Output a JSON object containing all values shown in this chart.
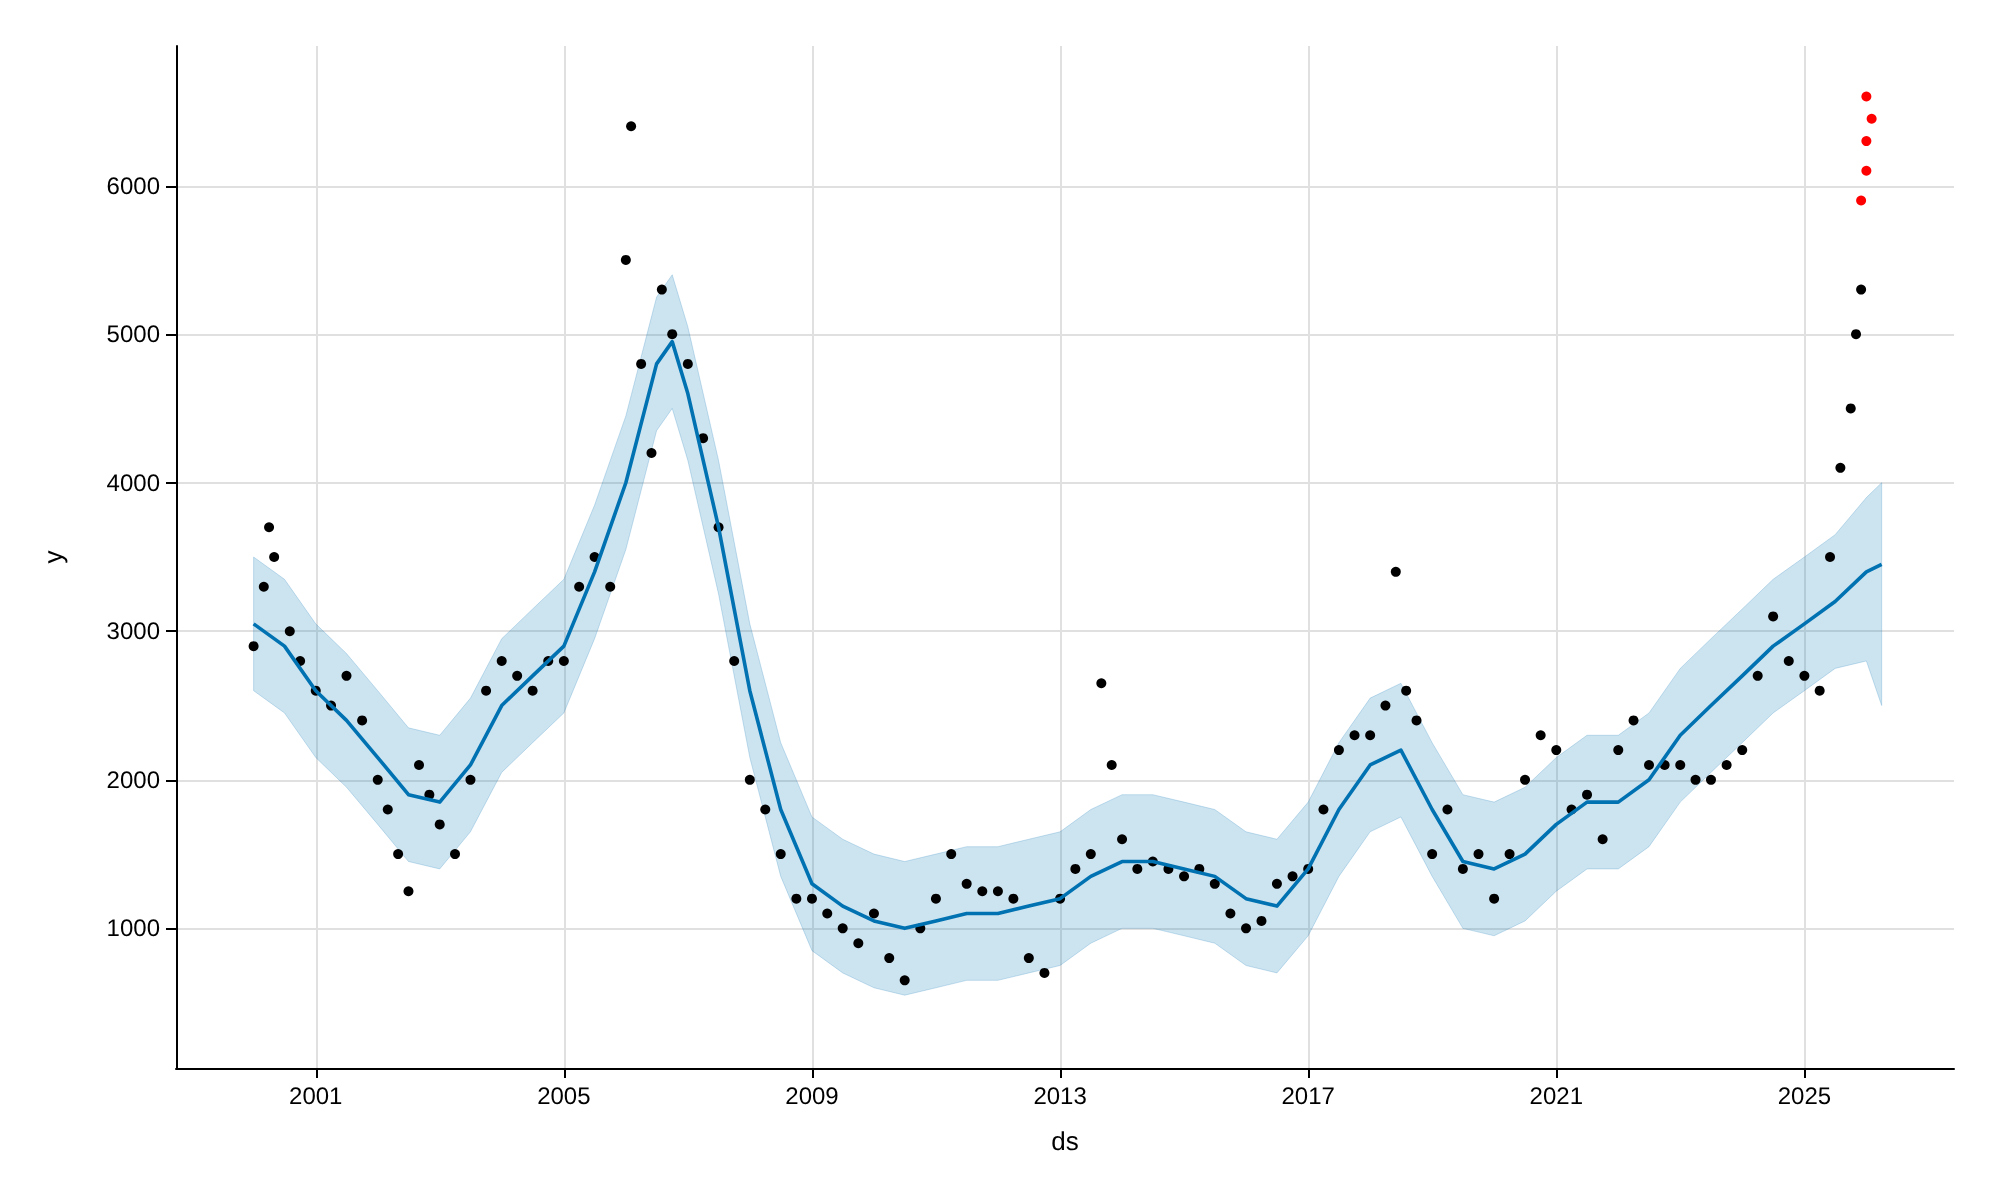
{
  "chart_data": {
    "type": "scatter",
    "xlabel": "ds",
    "ylabel": "y",
    "xlim": [
      "1998-10",
      "2027-06"
    ],
    "xticks": [
      "2001",
      "2005",
      "2009",
      "2013",
      "2017",
      "2021",
      "2025"
    ],
    "ylim": [
      60,
      6940
    ],
    "yticks": [
      1000,
      2000,
      3000,
      4000,
      5000,
      6000
    ],
    "grid": true,
    "marker": "circle",
    "series": [
      {
        "type": "line",
        "marker": "none",
        "color": "#0072b2",
        "x": [
          "2000-01",
          "2000-07",
          "2001-01",
          "2001-07",
          "2002-01",
          "2002-07",
          "2003-01",
          "2003-07",
          "2004-01",
          "2004-07",
          "2005-01",
          "2005-07",
          "2006-01",
          "2006-07",
          "2006-10",
          "2007-01",
          "2007-07",
          "2008-01",
          "2008-07",
          "2009-01",
          "2009-07",
          "2010-01",
          "2010-07",
          "2011-01",
          "2011-07",
          "2012-01",
          "2012-07",
          "2013-01",
          "2013-07",
          "2014-01",
          "2014-07",
          "2015-01",
          "2015-07",
          "2016-01",
          "2016-07",
          "2017-01",
          "2017-07",
          "2018-01",
          "2018-07",
          "2019-01",
          "2019-07",
          "2020-01",
          "2020-07",
          "2021-01",
          "2021-07",
          "2022-01",
          "2022-07",
          "2023-01",
          "2023-07",
          "2024-01",
          "2024-07",
          "2025-01",
          "2025-07",
          "2026-01",
          "2026-04"
        ],
        "values": [
          3050,
          2900,
          2600,
          2400,
          2150,
          1900,
          1850,
          2100,
          2500,
          2700,
          2900,
          3400,
          4000,
          4800,
          4950,
          4600,
          3700,
          2600,
          1800,
          1300,
          1150,
          1050,
          1000,
          1050,
          1100,
          1100,
          1150,
          1200,
          1350,
          1450,
          1450,
          1400,
          1350,
          1200,
          1150,
          1400,
          1800,
          2100,
          2200,
          1800,
          1450,
          1400,
          1500,
          1700,
          1850,
          1850,
          2000,
          2300,
          2500,
          2700,
          2900,
          3050,
          3200,
          3400,
          3450
        ],
        "lower": [
          2600,
          2450,
          2150,
          1950,
          1700,
          1450,
          1400,
          1650,
          2050,
          2250,
          2450,
          2950,
          3550,
          4350,
          4500,
          4150,
          3250,
          2150,
          1350,
          850,
          700,
          600,
          550,
          600,
          650,
          650,
          700,
          750,
          900,
          1000,
          1000,
          950,
          900,
          750,
          700,
          950,
          1350,
          1650,
          1750,
          1350,
          1000,
          950,
          1050,
          1250,
          1400,
          1400,
          1550,
          1850,
          2050,
          2250,
          2450,
          2600,
          2750,
          2800,
          2500
        ],
        "upper": [
          3500,
          3350,
          3050,
          2850,
          2600,
          2350,
          2300,
          2550,
          2950,
          3150,
          3350,
          3850,
          4450,
          5250,
          5400,
          5050,
          4150,
          3050,
          2250,
          1750,
          1600,
          1500,
          1450,
          1500,
          1550,
          1550,
          1600,
          1650,
          1800,
          1900,
          1900,
          1850,
          1800,
          1650,
          1600,
          1850,
          2250,
          2550,
          2650,
          2250,
          1900,
          1850,
          1950,
          2150,
          2300,
          2300,
          2450,
          2750,
          2950,
          3150,
          3350,
          3500,
          3650,
          3900,
          4000
        ]
      },
      {
        "color": "#000000",
        "x": [
          "2000-01",
          "2000-03",
          "2000-04",
          "2000-05",
          "2000-08",
          "2000-10",
          "2001-01",
          "2001-04",
          "2001-07",
          "2001-10",
          "2002-01",
          "2002-03",
          "2002-05",
          "2002-07",
          "2002-09",
          "2002-11",
          "2003-01",
          "2003-04",
          "2003-07",
          "2003-10",
          "2004-01",
          "2004-04",
          "2004-07",
          "2004-10",
          "2005-01",
          "2005-04",
          "2005-07",
          "2005-10",
          "2006-01",
          "2006-02",
          "2006-04",
          "2006-06",
          "2006-08",
          "2006-10",
          "2007-01",
          "2007-04",
          "2007-07",
          "2007-10",
          "2008-01",
          "2008-04",
          "2008-07",
          "2008-10",
          "2009-01",
          "2009-04",
          "2009-07",
          "2009-10",
          "2010-01",
          "2010-04",
          "2010-07",
          "2010-10",
          "2011-01",
          "2011-04",
          "2011-07",
          "2011-10",
          "2012-01",
          "2012-04",
          "2012-07",
          "2012-10",
          "2013-01",
          "2013-04",
          "2013-07",
          "2013-09",
          "2013-11",
          "2014-01",
          "2014-04",
          "2014-07",
          "2014-10",
          "2015-01",
          "2015-04",
          "2015-07",
          "2015-10",
          "2016-01",
          "2016-04",
          "2016-07",
          "2016-10",
          "2017-01",
          "2017-04",
          "2017-07",
          "2017-10",
          "2018-01",
          "2018-04",
          "2018-06",
          "2018-08",
          "2018-10",
          "2019-01",
          "2019-04",
          "2019-07",
          "2019-10",
          "2020-01",
          "2020-04",
          "2020-07",
          "2020-10",
          "2021-01",
          "2021-04",
          "2021-07",
          "2021-10",
          "2022-01",
          "2022-04",
          "2022-07",
          "2022-10",
          "2023-01",
          "2023-04",
          "2023-07",
          "2023-10",
          "2024-01",
          "2024-04",
          "2024-07",
          "2024-10",
          "2025-01",
          "2025-04",
          "2025-06",
          "2025-08",
          "2025-10",
          "2025-11",
          "2025-12"
        ],
        "values": [
          2900,
          3300,
          3700,
          3500,
          3000,
          2800,
          2600,
          2500,
          2700,
          2400,
          2000,
          1800,
          1500,
          1250,
          2100,
          1900,
          1700,
          1500,
          2000,
          2600,
          2800,
          2700,
          2600,
          2800,
          2800,
          3300,
          3500,
          3300,
          5500,
          6400,
          4800,
          4200,
          5300,
          5000,
          4800,
          4300,
          3700,
          2800,
          2000,
          1800,
          1500,
          1200,
          1200,
          1100,
          1000,
          900,
          1100,
          800,
          650,
          1000,
          1200,
          1500,
          1300,
          1250,
          1250,
          1200,
          800,
          700,
          1200,
          1400,
          1500,
          2650,
          2100,
          1600,
          1400,
          1450,
          1400,
          1350,
          1400,
          1300,
          1100,
          1000,
          1050,
          1300,
          1350,
          1400,
          1800,
          2200,
          2300,
          2300,
          2500,
          3400,
          2600,
          2400,
          1500,
          1800,
          1400,
          1500,
          1200,
          1500,
          2000,
          2300,
          2200,
          1800,
          1900,
          1600,
          2200,
          2400,
          2100,
          2100,
          2100,
          2000,
          2000,
          2100,
          2200,
          2700,
          3100,
          2800,
          2700,
          2600,
          3500,
          4100,
          4500,
          5000,
          5300
        ]
      },
      {
        "color": "#ff0000",
        "x": [
          "2025-12",
          "2026-01",
          "2026-01",
          "2026-01",
          "2026-02"
        ],
        "values": [
          5900,
          6100,
          6300,
          6600,
          6450
        ]
      }
    ]
  }
}
